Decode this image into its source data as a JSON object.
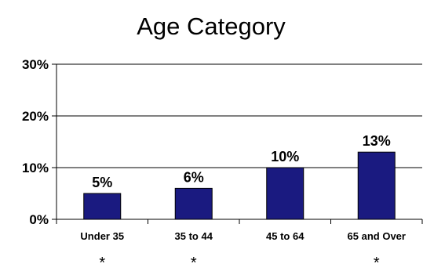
{
  "chart_data": {
    "type": "bar",
    "title": "Age Category",
    "xlabel": "",
    "ylabel": "",
    "categories": [
      "Under 35",
      "35 to 44",
      "45 to 64",
      "65 and Over"
    ],
    "values": [
      5,
      6,
      10,
      13
    ],
    "value_labels": [
      "5%",
      "6%",
      "10%",
      "13%"
    ],
    "ylim": [
      0,
      30
    ],
    "y_ticks": [
      0,
      10,
      20,
      30
    ],
    "y_tick_labels": [
      "0%",
      "10%",
      "20%",
      "30%"
    ],
    "footnote_marks": [
      "*",
      "*",
      "",
      "*"
    ],
    "grid": true,
    "legend": "none",
    "colors": {
      "bar": "#1a1a80",
      "bar_stroke": "#000000",
      "grid": "#000000"
    }
  }
}
